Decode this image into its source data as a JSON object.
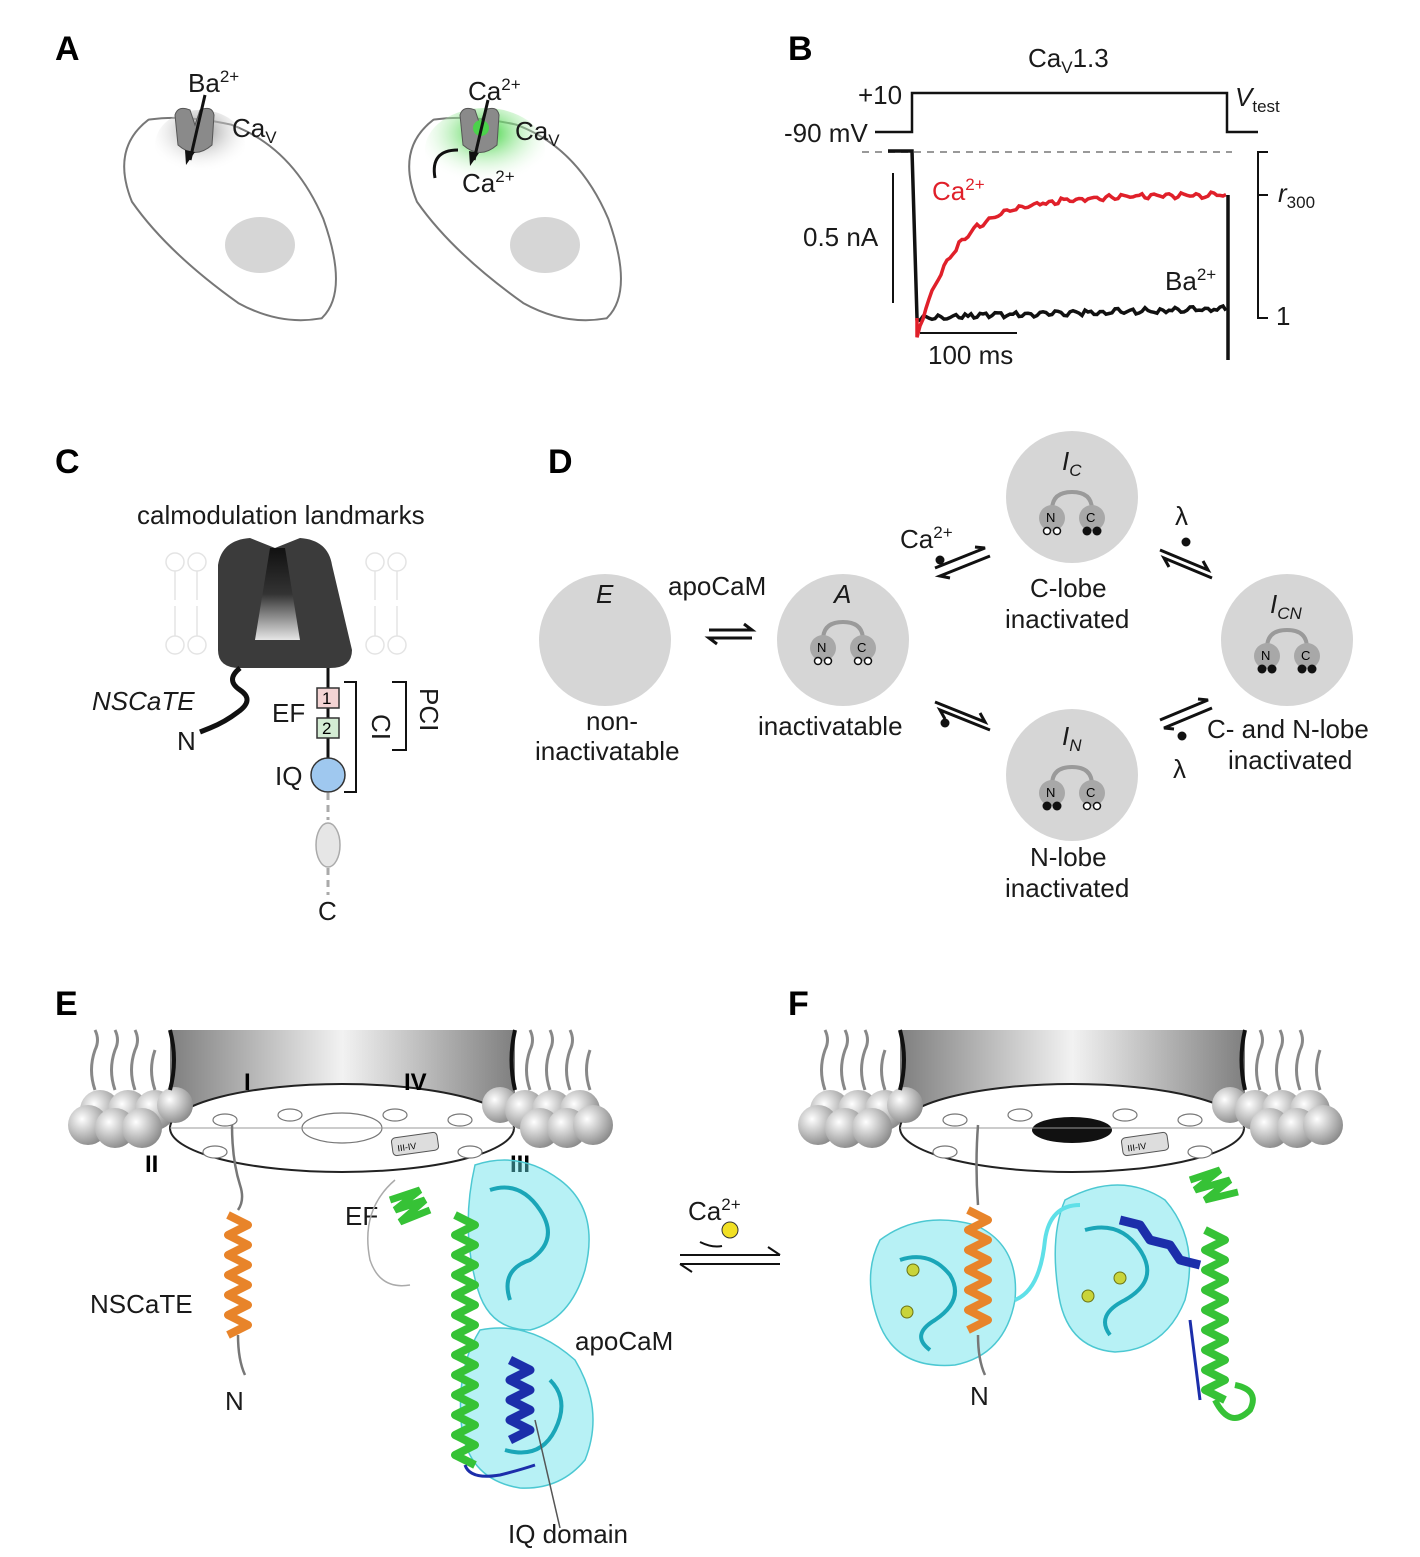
{
  "panels": {
    "A": {
      "label": "A",
      "left_ion": "Ba",
      "left_ion_sup": "2+",
      "left_channel": "Ca",
      "left_channel_sub": "V",
      "right_ion": "Ca",
      "right_ion_sup": "2+",
      "right_channel": "Ca",
      "right_channel_sub": "V",
      "inner_ion": "Ca",
      "inner_ion_sup": "2+"
    },
    "B": {
      "label": "B",
      "title_main": "Ca",
      "title_sub": "V",
      "title_rest": "1.3",
      "v_high": "+10",
      "v_low": "-90 mV",
      "vtest_main": "V",
      "vtest_sub": "test",
      "ca_trace": "Ca",
      "ca_sup": "2+",
      "ba_trace": "Ba",
      "ba_sup": "2+",
      "scale_current": "0.5 nA",
      "scale_time": "100 ms",
      "r300_main": "r",
      "r300_sub": "300",
      "one": "1",
      "colors": {
        "ca": "#e0202a",
        "ba": "#111111"
      }
    },
    "C": {
      "label": "C",
      "title": "calmodulation landmarks",
      "nscate": "NSCaTE",
      "n_term": "N",
      "ef": "EF",
      "box1": "1",
      "box2": "2",
      "iq": "IQ",
      "c_term": "C",
      "ci": "CI",
      "pci": "PCI"
    },
    "D": {
      "label": "D",
      "apocam": "apoCaM",
      "ca_ion": "Ca",
      "ca_sup": "2+",
      "lambda_top": "λ",
      "lambda_bottom": "λ",
      "states": {
        "E": {
          "main": "E",
          "sub": "",
          "caption1": "non-",
          "caption2": "inactivatable"
        },
        "A": {
          "main": "A",
          "sub": "",
          "caption1": "inactivatable",
          "caption2": ""
        },
        "IC": {
          "main": "I",
          "sub": "C",
          "caption1": "C-lobe",
          "caption2": "inactivated"
        },
        "IN": {
          "main": "I",
          "sub": "N",
          "caption1": "N-lobe",
          "caption2": "inactivated"
        },
        "ICN": {
          "main": "I",
          "sub": "CN",
          "caption1": "C- and N-lobe",
          "caption2": "inactivated"
        }
      },
      "lobe_n": "N",
      "lobe_c": "C"
    },
    "E": {
      "label": "E",
      "domain_I": "I",
      "domain_II": "II",
      "domain_III": "III",
      "domain_IV": "IV",
      "linker": "III-IV",
      "ef": "EF",
      "nscate": "NSCaTE",
      "n_term": "N",
      "apocam": "apoCaM",
      "iq_domain": "IQ domain"
    },
    "F": {
      "label": "F",
      "linker": "III-IV",
      "n_term": "N",
      "ca_ion": "Ca",
      "ca_sup": "2+"
    }
  }
}
